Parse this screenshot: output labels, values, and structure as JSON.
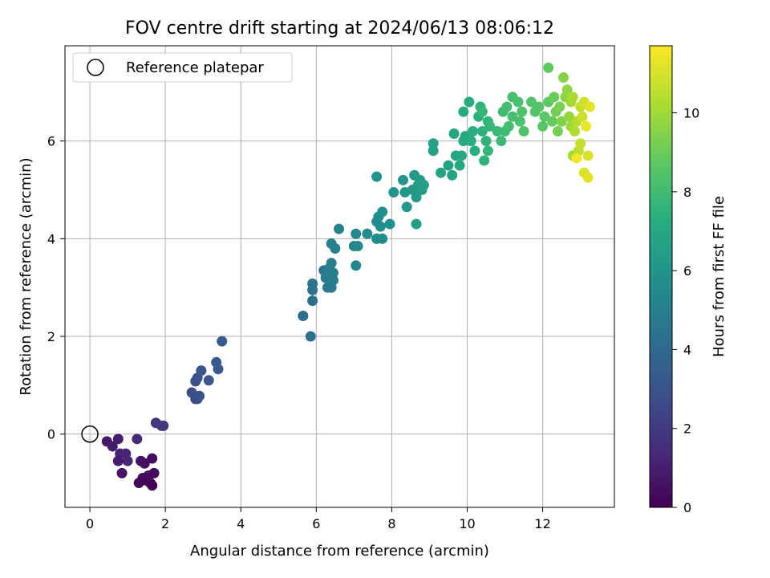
{
  "chart_data": {
    "type": "scatter",
    "title": "FOV centre drift starting at 2024/06/13 08:06:12",
    "xlabel": "Angular distance from reference (arcmin)",
    "ylabel": "Rotation from reference (arcmin)",
    "xlim": [
      -0.66,
      13.9
    ],
    "ylim": [
      -1.5,
      7.95
    ],
    "xticks": [
      0,
      2,
      4,
      6,
      8,
      10,
      12
    ],
    "yticks": [
      0,
      2,
      4,
      6
    ],
    "grid": true,
    "legend": {
      "location": "upper-left",
      "entries": [
        "Reference platepar"
      ]
    },
    "reference_point": {
      "label": "Reference platepar",
      "x": 0,
      "y": 0
    },
    "colorbar": {
      "label": "Hours from first FF file",
      "range": [
        0,
        11.7
      ],
      "ticks": [
        0,
        2,
        4,
        6,
        8,
        10
      ],
      "colormap": "viridis"
    },
    "points": [
      [
        0.45,
        -0.15,
        0.8
      ],
      [
        0.6,
        -0.25,
        0.9
      ],
      [
        0.75,
        -0.1,
        1.0
      ],
      [
        0.8,
        -0.4,
        1.1
      ],
      [
        0.95,
        -0.4,
        1.2
      ],
      [
        1.0,
        -0.55,
        1.3
      ],
      [
        0.75,
        -0.55,
        0.9
      ],
      [
        0.85,
        -0.8,
        0.7
      ],
      [
        1.25,
        -0.1,
        1.4
      ],
      [
        1.35,
        -0.55,
        0.6
      ],
      [
        1.45,
        -0.6,
        0.5
      ],
      [
        1.4,
        -0.9,
        0.3
      ],
      [
        1.5,
        -0.95,
        0.2
      ],
      [
        1.6,
        -1.0,
        0.1
      ],
      [
        1.65,
        -1.05,
        0.05
      ],
      [
        1.3,
        -1.0,
        0.15
      ],
      [
        1.65,
        -0.5,
        0.4
      ],
      [
        1.7,
        -0.8,
        0.25
      ],
      [
        1.55,
        -0.85,
        0.35
      ],
      [
        1.75,
        0.23,
        1.9
      ],
      [
        1.95,
        0.17,
        2.0
      ],
      [
        1.9,
        0.17,
        1.95
      ],
      [
        2.7,
        0.85,
        2.8
      ],
      [
        2.8,
        0.72,
        2.7
      ],
      [
        2.85,
        0.72,
        2.75
      ],
      [
        2.9,
        0.78,
        2.85
      ],
      [
        2.8,
        1.08,
        2.9
      ],
      [
        2.85,
        1.15,
        3.0
      ],
      [
        2.95,
        1.3,
        3.1
      ],
      [
        3.15,
        1.1,
        3.2
      ],
      [
        3.35,
        1.47,
        3.3
      ],
      [
        3.4,
        1.33,
        3.35
      ],
      [
        3.5,
        1.9,
        3.4
      ],
      [
        5.65,
        2.42,
        4.1
      ],
      [
        5.85,
        2.0,
        4.2
      ],
      [
        5.9,
        2.73,
        4.3
      ],
      [
        5.9,
        2.95,
        4.4
      ],
      [
        5.9,
        3.08,
        4.5
      ],
      [
        6.2,
        3.35,
        4.6
      ],
      [
        6.3,
        3.0,
        4.7
      ],
      [
        6.4,
        3.0,
        4.75
      ],
      [
        6.25,
        3.2,
        4.8
      ],
      [
        6.35,
        3.4,
        4.85
      ],
      [
        6.4,
        3.5,
        4.9
      ],
      [
        6.45,
        3.3,
        4.95
      ],
      [
        6.45,
        3.15,
        5.0
      ],
      [
        6.4,
        3.9,
        5.1
      ],
      [
        6.5,
        3.8,
        5.15
      ],
      [
        6.6,
        4.2,
        5.2
      ],
      [
        7.0,
        3.85,
        5.3
      ],
      [
        7.05,
        3.45,
        5.35
      ],
      [
        7.05,
        4.1,
        5.4
      ],
      [
        7.1,
        3.85,
        5.45
      ],
      [
        7.35,
        4.1,
        5.5
      ],
      [
        7.6,
        4.0,
        5.55
      ],
      [
        7.6,
        4.35,
        5.6
      ],
      [
        7.65,
        4.45,
        5.65
      ],
      [
        7.7,
        4.25,
        5.7
      ],
      [
        7.75,
        4.0,
        5.75
      ],
      [
        7.75,
        4.55,
        5.8
      ],
      [
        7.95,
        4.3,
        5.85
      ],
      [
        7.6,
        5.27,
        5.9
      ],
      [
        8.05,
        4.95,
        6.0
      ],
      [
        8.3,
        5.2,
        6.05
      ],
      [
        8.35,
        4.95,
        6.1
      ],
      [
        8.4,
        4.65,
        6.15
      ],
      [
        8.55,
        5.0,
        6.2
      ],
      [
        8.6,
        5.3,
        6.25
      ],
      [
        8.65,
        4.85,
        6.3
      ],
      [
        8.7,
        5.1,
        6.35
      ],
      [
        8.75,
        5.2,
        6.4
      ],
      [
        8.8,
        5.0,
        6.45
      ],
      [
        8.85,
        5.1,
        6.5
      ],
      [
        8.65,
        4.3,
        6.55
      ],
      [
        9.1,
        5.8,
        6.6
      ],
      [
        9.1,
        5.95,
        6.65
      ],
      [
        9.3,
        5.35,
        6.7
      ],
      [
        9.5,
        5.5,
        6.75
      ],
      [
        9.6,
        5.3,
        6.8
      ],
      [
        9.7,
        5.7,
        6.85
      ],
      [
        9.65,
        6.15,
        6.9
      ],
      [
        9.8,
        5.5,
        6.95
      ],
      [
        9.85,
        5.7,
        7.0
      ],
      [
        9.9,
        6.0,
        7.05
      ],
      [
        9.95,
        6.1,
        7.1
      ],
      [
        9.9,
        6.6,
        7.15
      ],
      [
        10.05,
        6.8,
        7.2
      ],
      [
        10.1,
        6.0,
        7.25
      ],
      [
        10.15,
        6.2,
        7.3
      ],
      [
        10.2,
        5.8,
        7.35
      ],
      [
        10.3,
        6.5,
        7.4
      ],
      [
        10.35,
        6.7,
        7.45
      ],
      [
        10.4,
        6.2,
        7.5
      ],
      [
        10.45,
        5.6,
        7.55
      ],
      [
        10.5,
        6.0,
        7.6
      ],
      [
        10.55,
        6.4,
        7.65
      ],
      [
        10.55,
        5.8,
        7.7
      ],
      [
        10.6,
        6.3,
        7.75
      ],
      [
        10.4,
        6.6,
        7.8
      ],
      [
        10.8,
        6.2,
        7.85
      ],
      [
        10.9,
        6.0,
        7.9
      ],
      [
        10.95,
        6.6,
        7.95
      ],
      [
        11.0,
        6.2,
        8.0
      ],
      [
        11.05,
        6.7,
        8.05
      ],
      [
        11.1,
        6.3,
        8.1
      ],
      [
        11.2,
        6.9,
        8.15
      ],
      [
        11.2,
        6.5,
        8.2
      ],
      [
        11.35,
        6.8,
        8.25
      ],
      [
        11.4,
        6.4,
        8.3
      ],
      [
        11.45,
        6.6,
        8.35
      ],
      [
        11.5,
        6.2,
        8.4
      ],
      [
        11.7,
        6.8,
        8.45
      ],
      [
        11.8,
        6.6,
        8.5
      ],
      [
        11.9,
        6.7,
        8.55
      ],
      [
        12.0,
        6.3,
        8.6
      ],
      [
        12.05,
        6.5,
        8.65
      ],
      [
        12.15,
        6.8,
        8.7
      ],
      [
        12.15,
        7.5,
        8.8
      ],
      [
        12.25,
        6.4,
        8.9
      ],
      [
        12.3,
        6.9,
        9.0
      ],
      [
        12.35,
        6.6,
        9.1
      ],
      [
        12.4,
        6.2,
        9.2
      ],
      [
        12.45,
        6.7,
        9.3
      ],
      [
        12.5,
        6.4,
        9.4
      ],
      [
        12.55,
        7.3,
        9.5
      ],
      [
        12.6,
        6.9,
        9.6
      ],
      [
        12.65,
        7.05,
        9.7
      ],
      [
        12.7,
        6.5,
        9.8
      ],
      [
        12.75,
        6.3,
        9.9
      ],
      [
        12.75,
        6.8,
        10.0
      ],
      [
        12.8,
        5.7,
        10.1
      ],
      [
        12.8,
        6.9,
        10.2
      ],
      [
        12.85,
        6.2,
        10.3
      ],
      [
        12.9,
        6.4,
        10.4
      ],
      [
        12.95,
        5.8,
        10.5
      ],
      [
        13.0,
        6.7,
        10.6
      ],
      [
        13.0,
        5.95,
        10.7
      ],
      [
        13.05,
        6.5,
        10.8
      ],
      [
        13.1,
        6.8,
        10.9
      ],
      [
        13.1,
        5.35,
        11.0
      ],
      [
        13.2,
        5.7,
        11.1
      ],
      [
        13.25,
        6.7,
        11.2
      ],
      [
        13.2,
        5.25,
        11.3
      ],
      [
        13.15,
        6.3,
        11.4
      ],
      [
        12.9,
        5.65,
        11.5
      ]
    ]
  }
}
